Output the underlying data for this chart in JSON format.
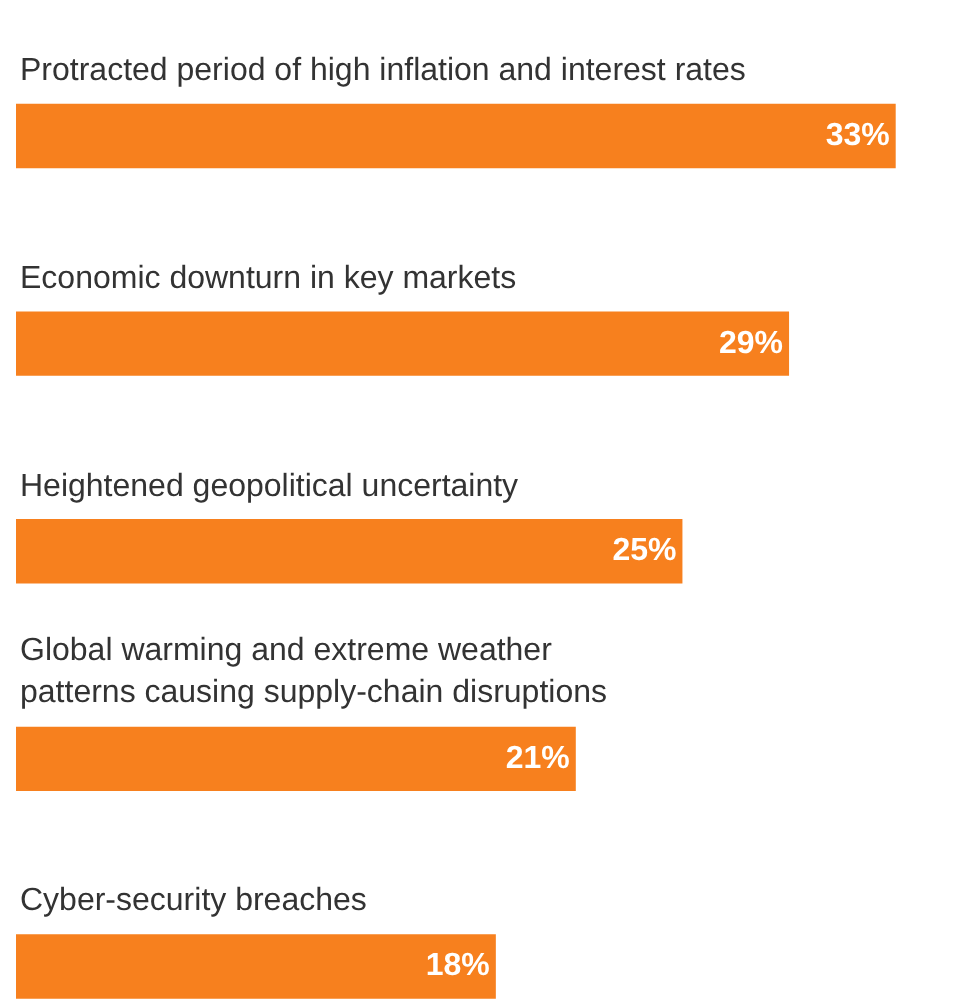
{
  "chart_data": {
    "type": "bar",
    "orientation": "horizontal",
    "categories": [
      "Protracted period of high inflation and interest rates",
      "Economic downturn in key markets",
      "Heightened geopolitical uncertainty",
      "Global warming and extreme weather\npatterns causing supply-chain disruptions",
      "Cyber-security breaches"
    ],
    "values": [
      33,
      29,
      25,
      21,
      18
    ],
    "value_labels": [
      "33%",
      "29%",
      "25%",
      "21%",
      "18%"
    ],
    "color": "#f7801e"
  }
}
